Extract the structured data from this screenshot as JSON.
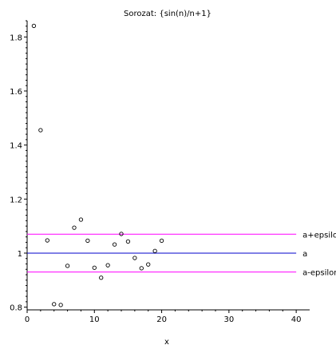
{
  "chart_data": {
    "type": "scatter",
    "title": "Sorozat: {sin(n)/n+1}",
    "xlabel": "x",
    "ylabel": "",
    "xlim": [
      0,
      42
    ],
    "ylim": [
      0.79,
      1.86
    ],
    "x_ticks": [
      0,
      10,
      20,
      30,
      40
    ],
    "y_ticks": [
      0.8,
      1,
      1.2,
      1.4,
      1.6,
      1.8
    ],
    "y_tick_labels": [
      "0.8",
      "1",
      "1.2",
      "1.4",
      "1.6",
      "1.8"
    ],
    "series": [
      {
        "marker": "circle-open",
        "color": "#000000",
        "x": [
          1,
          2,
          3,
          4,
          5,
          6,
          7,
          8,
          9,
          10,
          11,
          12,
          13,
          14,
          15,
          16,
          17,
          18,
          19,
          20
        ],
        "values": [
          1.841,
          1.455,
          1.047,
          0.811,
          0.808,
          0.953,
          1.094,
          1.124,
          1.046,
          0.946,
          0.909,
          0.955,
          1.032,
          1.071,
          1.043,
          0.982,
          0.944,
          0.958,
          1.008,
          1.046
        ]
      }
    ],
    "reference_lines": [
      {
        "label": "a+epsilon",
        "y": 1.07,
        "x_range": [
          0,
          40
        ],
        "color": "#ff00ff"
      },
      {
        "label": "a",
        "y": 1.0,
        "x_range": [
          0,
          40
        ],
        "color": "#0000cc"
      },
      {
        "label": "a-epsilon",
        "y": 0.93,
        "x_range": [
          0,
          40
        ],
        "color": "#ff00ff"
      }
    ],
    "grid": false,
    "legend": "none"
  }
}
